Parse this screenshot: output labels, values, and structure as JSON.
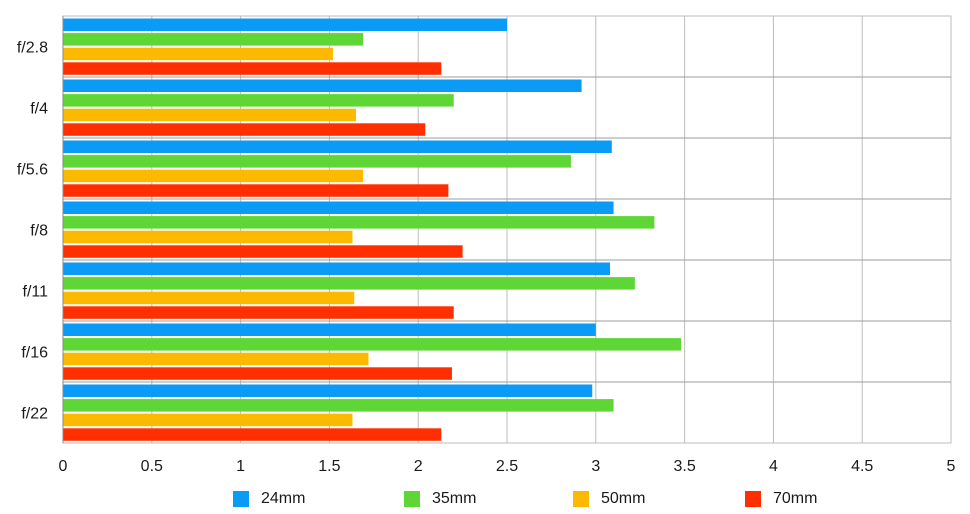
{
  "chart_data": {
    "type": "bar",
    "orientation": "horizontal",
    "title": "",
    "xlabel": "",
    "ylabel": "",
    "xlim": [
      0,
      5
    ],
    "x_ticks": [
      "0",
      "0.5",
      "1",
      "1.5",
      "2",
      "2.5",
      "3",
      "3.5",
      "4",
      "4.5",
      "5"
    ],
    "grid": true,
    "legend_position": "bottom",
    "categories": [
      "f/2.8",
      "f/4",
      "f/5.6",
      "f/8",
      "f/11",
      "f/16",
      "f/22"
    ],
    "series": [
      {
        "name": "24mm",
        "color": "#0A9BF7",
        "values": [
          2.5,
          2.92,
          3.09,
          3.1,
          3.08,
          3.0,
          2.98
        ]
      },
      {
        "name": "35mm",
        "color": "#5ED636",
        "values": [
          1.69,
          2.2,
          2.86,
          3.33,
          3.22,
          3.48,
          3.1
        ]
      },
      {
        "name": "50mm",
        "color": "#FBBA00",
        "values": [
          1.52,
          1.65,
          1.69,
          1.63,
          1.64,
          1.72,
          1.63
        ]
      },
      {
        "name": "70mm",
        "color": "#FF2F00",
        "values": [
          2.13,
          2.04,
          2.17,
          2.25,
          2.2,
          2.19,
          2.13
        ]
      }
    ]
  }
}
